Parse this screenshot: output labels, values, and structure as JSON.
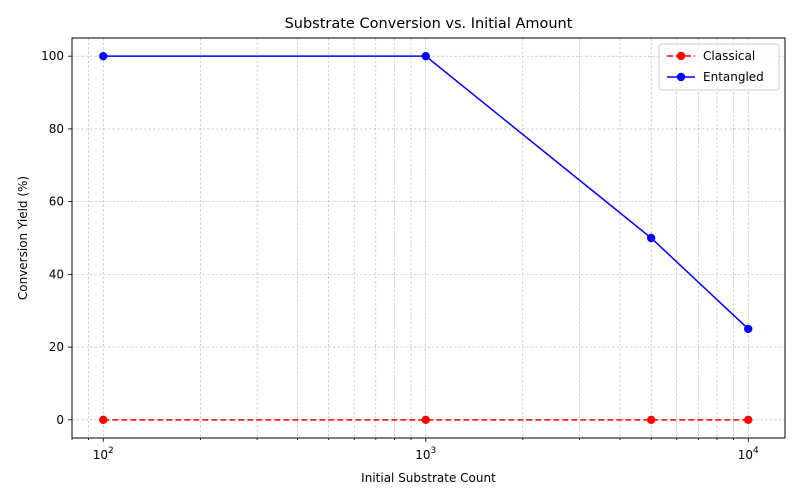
{
  "chart_data": {
    "type": "line",
    "title": "Substrate Conversion vs. Initial Amount",
    "xlabel": "Initial Substrate Count",
    "ylabel": "Conversion Yield (%)",
    "x": [
      100,
      1000,
      5000,
      10000
    ],
    "x_scale": "log",
    "xlim": [
      80,
      13000
    ],
    "ylim": [
      -5,
      105
    ],
    "x_ticks": [
      {
        "value": 100,
        "base": "10",
        "exp": "2"
      },
      {
        "value": 1000,
        "base": "10",
        "exp": "3"
      },
      {
        "value": 10000,
        "base": "10",
        "exp": "4"
      }
    ],
    "y_ticks": [
      0,
      20,
      40,
      60,
      80,
      100
    ],
    "grid": true,
    "legend_position": "top-right",
    "series": [
      {
        "name": "Classical",
        "values": [
          0,
          0,
          0,
          0
        ],
        "color": "#ff0000",
        "line_style": "dashed",
        "marker": "circle"
      },
      {
        "name": "Entangled",
        "values": [
          100,
          100,
          50,
          25
        ],
        "color": "#0000ff",
        "line_style": "solid",
        "marker": "circle"
      }
    ]
  }
}
